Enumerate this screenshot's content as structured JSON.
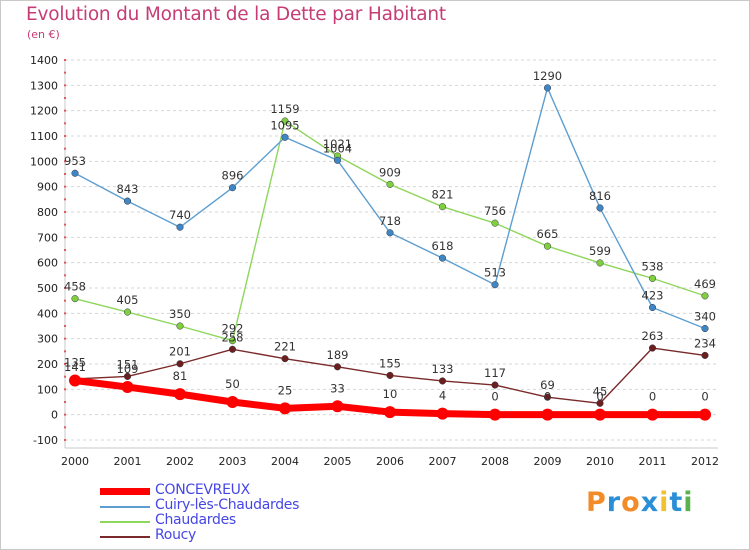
{
  "header": {
    "title": "Evolution du Montant de la Dette par Habitant",
    "unit": "(en €)"
  },
  "logo": {
    "text": "Proxiti",
    "letters": [
      "P",
      "r",
      "o",
      "x",
      "i",
      "t",
      "i"
    ],
    "colors": [
      "#f28c28",
      "#2a8fd6",
      "#f28c28",
      "#2a8fd6",
      "#f2c12e",
      "#2a8fd6",
      "#5ab34a"
    ]
  },
  "chart_data": {
    "type": "line",
    "title": "Evolution du Montant de la Dette par Habitant",
    "subtitle": "(en €)",
    "x": [
      "2000",
      "2001",
      "2002",
      "2003",
      "2004",
      "2005",
      "2006",
      "2007",
      "2008",
      "2009",
      "2010",
      "2011",
      "2012"
    ],
    "ylim": [
      -100,
      1400
    ],
    "yticks": [
      -100,
      0,
      100,
      200,
      300,
      400,
      500,
      600,
      700,
      800,
      900,
      1000,
      1100,
      1200,
      1300,
      1400
    ],
    "grid": "horizontal dashed",
    "legend_position": "bottom-left",
    "series": [
      {
        "name": "CONCEVREUX",
        "color": "#ff0000",
        "width": 7,
        "values": [
          135,
          109,
          81,
          50,
          25,
          33,
          10,
          4,
          0,
          0,
          0,
          0,
          0
        ]
      },
      {
        "name": "Cuiry-lès-Chaudardes",
        "color": "#5d9ecf",
        "width": 1.4,
        "values": [
          953,
          843,
          740,
          896,
          1095,
          1004,
          718,
          618,
          513,
          1290,
          816,
          423,
          340
        ]
      },
      {
        "name": "Chaudardes",
        "color": "#8fd65c",
        "width": 1.4,
        "values": [
          458,
          405,
          350,
          292,
          1159,
          1021,
          909,
          821,
          756,
          665,
          599,
          538,
          469
        ]
      },
      {
        "name": "Roucy",
        "color": "#7a2a2a",
        "width": 1.4,
        "values": [
          141,
          151,
          201,
          258,
          221,
          189,
          155,
          133,
          117,
          69,
          45,
          263,
          234
        ]
      }
    ],
    "point_colors": {
      "CONCEVREUX": "#ff0000",
      "Cuiry-lès-Chaudardes": "#3f86c4",
      "Chaudardes": "#7fcf3f",
      "Roucy": "#6b1f1f"
    }
  }
}
